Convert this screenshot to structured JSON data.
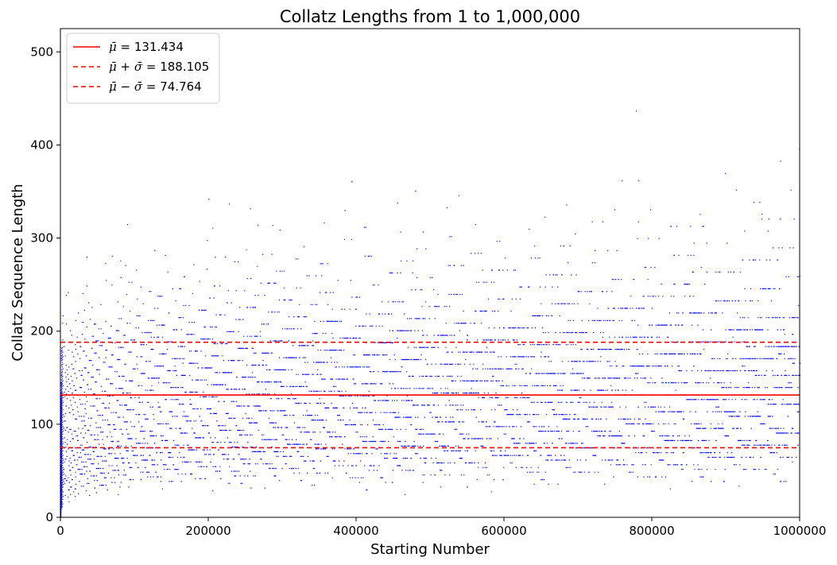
{
  "chart_data": {
    "type": "scatter",
    "title": "Collatz Lengths from 1 to 1,000,000",
    "xlabel": "Starting Number",
    "ylabel": "Collatz Sequence Length",
    "xlim": [
      0,
      1000000
    ],
    "ylim": [
      0,
      525
    ],
    "x_ticks": [
      0,
      200000,
      400000,
      600000,
      800000,
      1000000
    ],
    "y_ticks": [
      0,
      100,
      200,
      300,
      400,
      500
    ],
    "grid": false,
    "legend_position": "top-left",
    "point_color": "#0000ff",
    "series": [
      {
        "name": "",
        "description_range": {
          "x": [
            1,
            1000000
          ],
          "y": [
            1,
            525
          ]
        }
      }
    ],
    "reference_lines": [
      {
        "name": "μ̄ = 131.434",
        "symbol": "μ̄",
        "op": "",
        "value": 131.434,
        "label_text": "= 131.434",
        "style": "solid",
        "color": "#ff0000"
      },
      {
        "name": "μ̄ + σ̄ = 188.105",
        "symbol": "μ̄",
        "op": "+ σ̄",
        "value": 188.105,
        "label_text": "= 188.105",
        "style": "dashed",
        "color": "#ff0000"
      },
      {
        "name": "μ̄ − σ̄ = 74.764",
        "symbol": "μ̄",
        "op": "− σ̄",
        "value": 74.764,
        "label_text": "= 74.764",
        "style": "dashed",
        "color": "#ff0000"
      }
    ]
  }
}
